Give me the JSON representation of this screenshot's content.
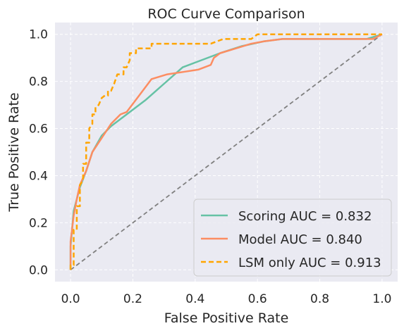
{
  "chart_data": {
    "type": "line",
    "title": "ROC Curve Comparison",
    "xlabel": "False Positive Rate",
    "ylabel": "True Positive Rate",
    "xlim": [
      -0.05,
      1.05
    ],
    "ylim": [
      -0.05,
      1.05
    ],
    "xticks": [
      "0.0",
      "0.2",
      "0.4",
      "0.6",
      "0.8",
      "1.0"
    ],
    "yticks": [
      "0.0",
      "0.2",
      "0.4",
      "0.6",
      "0.8",
      "1.0"
    ],
    "grid": true,
    "legend_position": "lower-right",
    "series": [
      {
        "name": "Scoring AUC = 0.832",
        "color": "#66c2a5",
        "style": "solid",
        "points": [
          [
            0,
            0
          ],
          [
            0,
            0.1
          ],
          [
            0.01,
            0.25
          ],
          [
            0.02,
            0.3
          ],
          [
            0.03,
            0.35
          ],
          [
            0.05,
            0.42
          ],
          [
            0.07,
            0.5
          ],
          [
            0.1,
            0.57
          ],
          [
            0.13,
            0.61
          ],
          [
            0.18,
            0.66
          ],
          [
            0.24,
            0.72
          ],
          [
            0.3,
            0.79
          ],
          [
            0.36,
            0.86
          ],
          [
            0.42,
            0.89
          ],
          [
            0.48,
            0.92
          ],
          [
            0.55,
            0.95
          ],
          [
            0.62,
            0.97
          ],
          [
            0.68,
            0.98
          ],
          [
            0.85,
            0.98
          ],
          [
            0.95,
            0.98
          ],
          [
            1.0,
            1.0
          ]
        ]
      },
      {
        "name": "Model AUC = 0.840",
        "color": "#fc8d62",
        "style": "solid",
        "points": [
          [
            0,
            0
          ],
          [
            0,
            0.12
          ],
          [
            0.01,
            0.23
          ],
          [
            0.02,
            0.3
          ],
          [
            0.03,
            0.36
          ],
          [
            0.05,
            0.42
          ],
          [
            0.07,
            0.5
          ],
          [
            0.1,
            0.56
          ],
          [
            0.13,
            0.62
          ],
          [
            0.16,
            0.66
          ],
          [
            0.18,
            0.67
          ],
          [
            0.22,
            0.74
          ],
          [
            0.26,
            0.81
          ],
          [
            0.31,
            0.83
          ],
          [
            0.36,
            0.84
          ],
          [
            0.41,
            0.85
          ],
          [
            0.45,
            0.87
          ],
          [
            0.46,
            0.9
          ],
          [
            0.48,
            0.92
          ],
          [
            0.53,
            0.94
          ],
          [
            0.58,
            0.96
          ],
          [
            0.62,
            0.97
          ],
          [
            0.68,
            0.98
          ],
          [
            0.9,
            0.98
          ],
          [
            0.97,
            0.98
          ],
          [
            1.0,
            1.0
          ]
        ]
      },
      {
        "name": "LSM only AUC = 0.913",
        "color": "#ffa500",
        "style": "dashed",
        "points": [
          [
            0,
            0
          ],
          [
            0,
            0.02
          ],
          [
            0.01,
            0.02
          ],
          [
            0.01,
            0.17
          ],
          [
            0.02,
            0.17
          ],
          [
            0.02,
            0.27
          ],
          [
            0.03,
            0.27
          ],
          [
            0.03,
            0.36
          ],
          [
            0.04,
            0.38
          ],
          [
            0.04,
            0.45
          ],
          [
            0.05,
            0.45
          ],
          [
            0.05,
            0.54
          ],
          [
            0.06,
            0.54
          ],
          [
            0.06,
            0.6
          ],
          [
            0.07,
            0.62
          ],
          [
            0.07,
            0.66
          ],
          [
            0.08,
            0.66
          ],
          [
            0.08,
            0.69
          ],
          [
            0.09,
            0.7
          ],
          [
            0.1,
            0.73
          ],
          [
            0.11,
            0.74
          ],
          [
            0.12,
            0.74
          ],
          [
            0.12,
            0.76
          ],
          [
            0.13,
            0.76
          ],
          [
            0.14,
            0.79
          ],
          [
            0.15,
            0.83
          ],
          [
            0.17,
            0.83
          ],
          [
            0.17,
            0.86
          ],
          [
            0.18,
            0.86
          ],
          [
            0.19,
            0.89
          ],
          [
            0.19,
            0.92
          ],
          [
            0.21,
            0.92
          ],
          [
            0.21,
            0.94
          ],
          [
            0.26,
            0.94
          ],
          [
            0.26,
            0.96
          ],
          [
            0.45,
            0.96
          ],
          [
            0.49,
            0.98
          ],
          [
            0.58,
            0.98
          ],
          [
            0.6,
            1.0
          ],
          [
            1.0,
            1.0
          ]
        ]
      },
      {
        "name": "",
        "color": "#808080",
        "style": "dashed",
        "points": [
          [
            0,
            0
          ],
          [
            1,
            1
          ]
        ]
      }
    ]
  }
}
